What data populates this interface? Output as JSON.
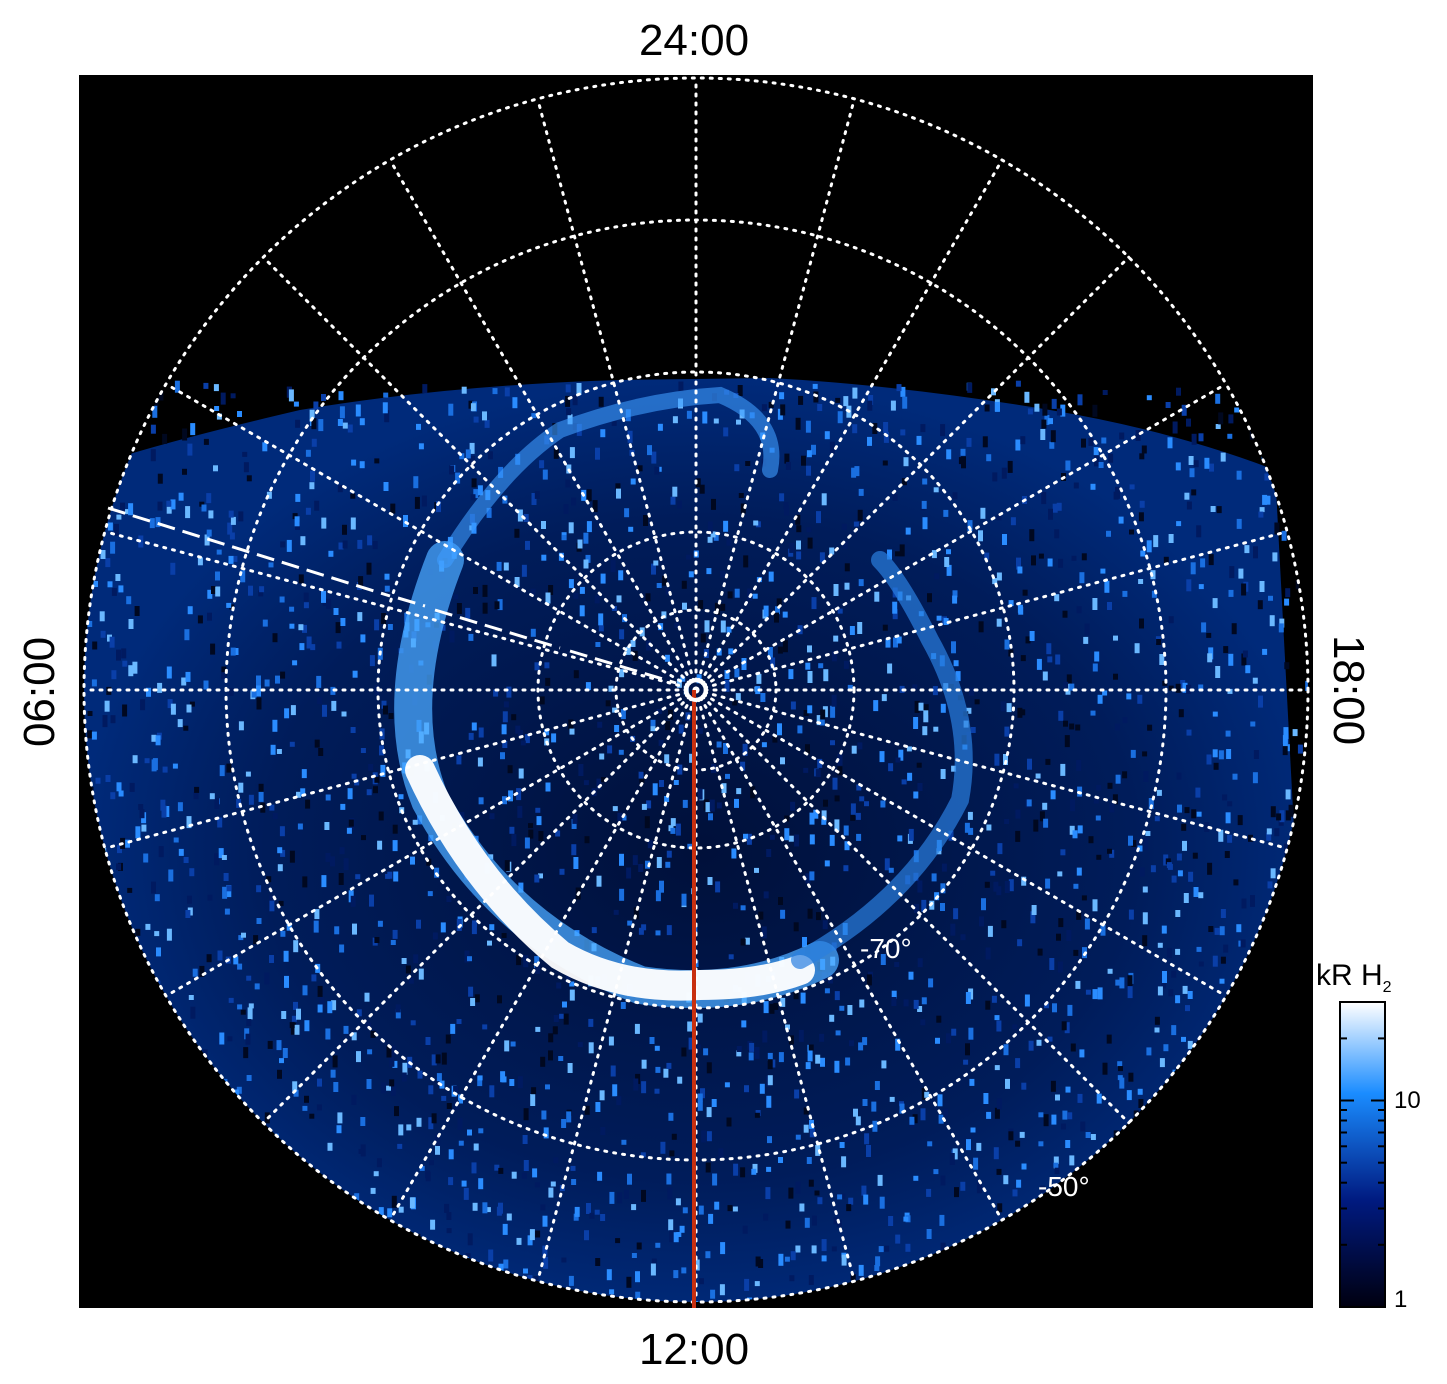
{
  "figure": {
    "local_time_labels": {
      "top": "24:00",
      "bottom": "12:00",
      "left": "06:00",
      "right": "18:00"
    },
    "latitude_labels": [
      "-70°",
      "-50°"
    ],
    "colorbar": {
      "title_main": "kR H",
      "title_sub": "2",
      "tick_labels": [
        "10",
        "1"
      ],
      "scale": "log",
      "colors": [
        "#000010",
        "#001a80",
        "#1a8cff",
        "#ffffff"
      ]
    },
    "colors": {
      "background": "#000000",
      "grid": "#ffffff",
      "reference_line": "#c83010",
      "aurora": "#1a8cff"
    }
  }
}
